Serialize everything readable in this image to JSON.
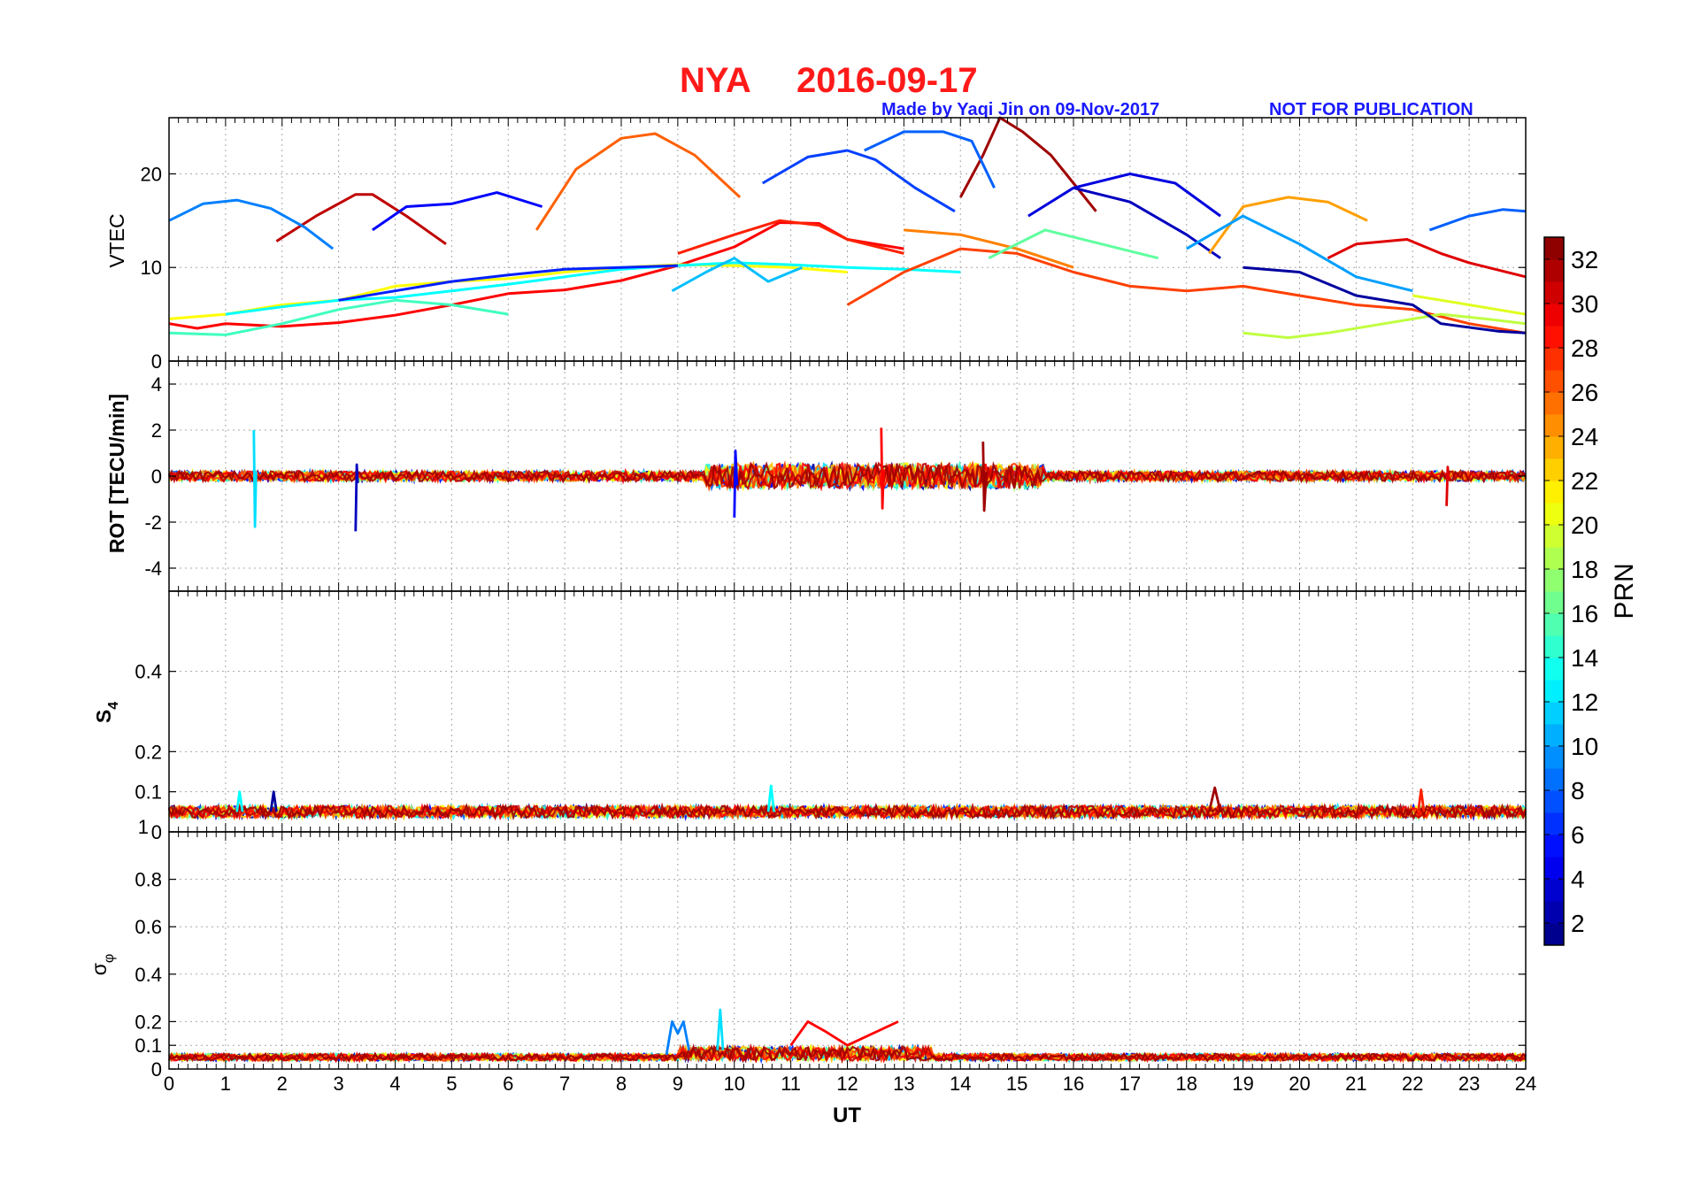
{
  "figure": {
    "title_station": "NYA",
    "title_date": "2016-09-17",
    "credit": "Made by Yaqi Jin on 09-Nov-2017",
    "notice": "NOT FOR PUBLICATION",
    "title_color": "#ff1a1a",
    "credit_color": "#1a1aff"
  },
  "chart_data": [
    {
      "type": "line",
      "panel": "VTEC",
      "ylabel": "VTEC",
      "xlabel": "",
      "xlim": [
        0,
        24
      ],
      "ylim": [
        0,
        26
      ],
      "yticks": [
        0,
        10,
        20
      ],
      "grid": true,
      "series": [
        {
          "prn": 32,
          "x": [
            14,
            14.4,
            14.7,
            15.1,
            15.6,
            16.0,
            16.4
          ],
          "y": [
            17.5,
            22,
            26,
            24.5,
            22,
            19,
            16
          ]
        },
        {
          "prn": 31,
          "x": [
            1.9,
            2.6,
            3.3,
            3.6,
            4.2,
            4.9
          ],
          "y": [
            12.8,
            15.5,
            17.8,
            17.8,
            15.5,
            12.5
          ]
        },
        {
          "prn": 26,
          "x": [
            6.5,
            7.2,
            8.0,
            8.6,
            9.3,
            10.1
          ],
          "y": [
            14,
            20.5,
            23.8,
            24.3,
            22,
            17.5
          ]
        },
        {
          "prn": 7,
          "x": [
            10.5,
            11.3,
            12.0,
            12.5,
            13.2,
            13.9
          ],
          "y": [
            19,
            21.8,
            22.5,
            21.5,
            18.5,
            16
          ]
        },
        {
          "prn": 9,
          "x": [
            0,
            0.6,
            1.2,
            1.8,
            2.4,
            2.9
          ],
          "y": [
            15,
            16.8,
            17.2,
            16.3,
            14.3,
            12
          ]
        },
        {
          "prn": 5,
          "x": [
            3.6,
            4.2,
            5.0,
            5.8,
            6.6
          ],
          "y": [
            14,
            16.5,
            16.8,
            18,
            16.5
          ]
        },
        {
          "prn": 8,
          "x": [
            12.3,
            13.0,
            13.7,
            14.2,
            14.6
          ],
          "y": [
            22.5,
            24.5,
            24.5,
            23.5,
            18.5
          ]
        },
        {
          "prn": 4,
          "x": [
            15.2,
            16.0,
            17.0,
            17.8,
            18.6
          ],
          "y": [
            15.5,
            18.5,
            20,
            19,
            15.5
          ]
        },
        {
          "prn": 3,
          "x": [
            16.0,
            17.0,
            18.0,
            18.6
          ],
          "y": [
            18.5,
            17,
            13.5,
            11
          ]
        },
        {
          "prn": 24,
          "x": [
            18.4,
            19.0,
            19.8,
            20.5,
            21.2
          ],
          "y": [
            11.5,
            16.5,
            17.5,
            17,
            15
          ]
        },
        {
          "prn": 10,
          "x": [
            18.0,
            19.0,
            20.0,
            21.0,
            22.0
          ],
          "y": [
            12,
            15.5,
            12.5,
            9,
            7.5
          ]
        },
        {
          "prn": 8,
          "x": [
            22.3,
            23.0,
            23.6,
            24
          ],
          "y": [
            14,
            15.5,
            16.2,
            16
          ]
        },
        {
          "prn": 30,
          "x": [
            20.5,
            21.0,
            21.9,
            22.5,
            23.0,
            24
          ],
          "y": [
            11,
            12.5,
            13,
            11.5,
            10.5,
            9
          ]
        },
        {
          "prn": 29,
          "x": [
            0,
            0.5,
            1.0,
            2.0,
            3.0,
            4.0,
            5.0,
            6.0,
            7.0,
            8.0,
            9.0,
            10.0,
            10.8,
            11.5,
            12.0,
            13.0
          ],
          "y": [
            4,
            3.5,
            4,
            3.7,
            4.1,
            4.9,
            6,
            7.2,
            7.6,
            8.6,
            10.2,
            12.2,
            14.8,
            14.7,
            13,
            12
          ]
        },
        {
          "prn": 28,
          "x": [
            9.0,
            10.0,
            10.8,
            11.5,
            12.0,
            13.0
          ],
          "y": [
            11.5,
            13.5,
            15,
            14.5,
            13,
            11.5
          ]
        },
        {
          "prn": 15,
          "x": [
            0,
            1.0,
            2.0,
            3.0,
            4.0,
            5.0,
            6.0
          ],
          "y": [
            3,
            2.8,
            4,
            5.5,
            6.5,
            6,
            5
          ]
        },
        {
          "prn": 21,
          "x": [
            0,
            1.0,
            2.0,
            3.0,
            4.0,
            5.0,
            6.0,
            7.0,
            8.0,
            9.0,
            10.0,
            11.0,
            12.0
          ],
          "y": [
            4.5,
            5,
            6,
            6.5,
            8,
            8.5,
            8.8,
            9.5,
            10,
            10.3,
            10.2,
            10,
            9.5
          ]
        },
        {
          "prn": 13,
          "x": [
            1.0,
            2.0,
            3.0,
            4.0,
            5.0,
            6.0,
            7.0,
            8.0,
            9.0,
            10.0,
            11.0,
            12.0,
            13.0,
            14.0
          ],
          "y": [
            5,
            5.8,
            6.5,
            6.8,
            7.5,
            8.2,
            9,
            9.8,
            10.2,
            10.5,
            10.3,
            10,
            9.8,
            9.5
          ]
        },
        {
          "prn": 6,
          "x": [
            3.0,
            4.0,
            5.0,
            6.0,
            7.0,
            8.0,
            9.0
          ],
          "y": [
            6.5,
            7.5,
            8.5,
            9.2,
            9.8,
            10,
            10.2
          ]
        },
        {
          "prn": 27,
          "x": [
            12.0,
            13.0,
            14.0,
            15.0,
            16.0,
            17.0,
            18.0,
            19.0,
            20.0,
            21.0,
            22.0,
            23.0,
            24
          ],
          "y": [
            6,
            9.5,
            12,
            11.5,
            9.5,
            8,
            7.5,
            8,
            7,
            6,
            5.5,
            4,
            3
          ]
        },
        {
          "prn": 25,
          "x": [
            13.0,
            14.0,
            15.0,
            16.0
          ],
          "y": [
            14,
            13.5,
            12,
            10
          ]
        },
        {
          "prn": 16,
          "x": [
            14.5,
            15.5,
            16.5,
            17.5
          ],
          "y": [
            11,
            14,
            12.5,
            11
          ]
        },
        {
          "prn": 19,
          "x": [
            19.0,
            19.8,
            20.5,
            21.5,
            22.5,
            23.3,
            24
          ],
          "y": [
            3,
            2.5,
            3,
            4,
            5,
            4.5,
            4
          ]
        },
        {
          "prn": 20,
          "x": [
            22.0,
            23.0,
            24
          ],
          "y": [
            7,
            6,
            5
          ]
        },
        {
          "prn": 2,
          "x": [
            19.0,
            20.0,
            21.0,
            22.0,
            22.5,
            23.5,
            24
          ],
          "y": [
            10,
            9.5,
            7,
            6,
            4,
            3.2,
            3
          ]
        },
        {
          "prn": 11,
          "x": [
            8.9,
            9.5,
            10.0,
            10.6,
            11.2
          ],
          "y": [
            7.5,
            9.5,
            11,
            8.5,
            10
          ]
        }
      ]
    },
    {
      "type": "line",
      "panel": "ROT",
      "ylabel": "ROT [TECU/min]",
      "xlabel": "",
      "xlim": [
        0,
        24
      ],
      "ylim": [
        -5,
        5
      ],
      "yticks": [
        -4,
        -2,
        0,
        2,
        4
      ],
      "grid": true,
      "series": [
        {
          "prn": 12,
          "x": [
            1.5,
            1.52,
            1.54
          ],
          "y": [
            2.0,
            -2.2,
            0.2
          ]
        },
        {
          "prn": 3,
          "x": [
            3.3,
            3.32,
            3.34
          ],
          "y": [
            -2.4,
            0.5,
            -0.3
          ]
        },
        {
          "prn": 29,
          "x": [
            12.6,
            12.62,
            12.64
          ],
          "y": [
            2.1,
            -1.4,
            0.3
          ]
        },
        {
          "prn": 32,
          "x": [
            14.4,
            14.42,
            14.46
          ],
          "y": [
            1.5,
            -1.5,
            0.2
          ]
        },
        {
          "prn": 5,
          "x": [
            10.0,
            10.02,
            10.05
          ],
          "y": [
            -1.8,
            1.1,
            -0.4
          ]
        },
        {
          "prn": 30,
          "x": [
            22.6,
            22.62,
            22.64
          ],
          "y": [
            -1.3,
            0.4,
            -0.2
          ]
        }
      ]
    },
    {
      "type": "line",
      "panel": "S4",
      "ylabel": "S4",
      "xlabel": "",
      "xlim": [
        0,
        24
      ],
      "ylim": [
        0,
        0.6
      ],
      "yticks": [
        0,
        0.1,
        0.2,
        0.4
      ],
      "extra_label": "1",
      "grid": true,
      "series": [
        {
          "prn": 13,
          "x": [
            1.2,
            1.25,
            1.3
          ],
          "y": [
            0.05,
            0.1,
            0.05
          ]
        },
        {
          "prn": 2,
          "x": [
            1.8,
            1.85,
            1.9
          ],
          "y": [
            0.05,
            0.1,
            0.05
          ]
        },
        {
          "prn": 13,
          "x": [
            10.6,
            10.65,
            10.7
          ],
          "y": [
            0.05,
            0.115,
            0.05
          ]
        },
        {
          "prn": 32,
          "x": [
            18.4,
            18.5,
            18.6
          ],
          "y": [
            0.05,
            0.11,
            0.05
          ]
        },
        {
          "prn": 28,
          "x": [
            22.1,
            22.15,
            22.2
          ],
          "y": [
            0.05,
            0.105,
            0.05
          ]
        }
      ]
    },
    {
      "type": "line",
      "panel": "sigma_phi",
      "ylabel": "σφ",
      "xlabel": "UT",
      "xlim": [
        0,
        24
      ],
      "ylim": [
        0,
        1
      ],
      "yticks": [
        0,
        0.1,
        0.2,
        0.4,
        0.6,
        0.8
      ],
      "xticks": [
        0,
        1,
        2,
        3,
        4,
        5,
        6,
        7,
        8,
        9,
        10,
        11,
        12,
        13,
        14,
        15,
        16,
        17,
        18,
        19,
        20,
        21,
        22,
        23,
        24
      ],
      "grid": true,
      "series": [
        {
          "prn": 9,
          "x": [
            8.8,
            8.9,
            9.0,
            9.1,
            9.2
          ],
          "y": [
            0.06,
            0.2,
            0.15,
            0.2,
            0.08
          ]
        },
        {
          "prn": 12,
          "x": [
            9.7,
            9.75,
            9.8
          ],
          "y": [
            0.08,
            0.25,
            0.08
          ]
        },
        {
          "prn": 29,
          "x": [
            11.0,
            11.3,
            11.6,
            12.0,
            12.9
          ],
          "y": [
            0.1,
            0.2,
            0.16,
            0.1,
            0.2
          ]
        }
      ]
    }
  ],
  "colorbar": {
    "label": "PRN",
    "ticks": [
      "2",
      "4",
      "6",
      "8",
      "10",
      "12",
      "14",
      "16",
      "18",
      "20",
      "22",
      "24",
      "26",
      "28",
      "30",
      "32"
    ],
    "range": [
      1,
      33
    ],
    "colormap": "jet"
  }
}
